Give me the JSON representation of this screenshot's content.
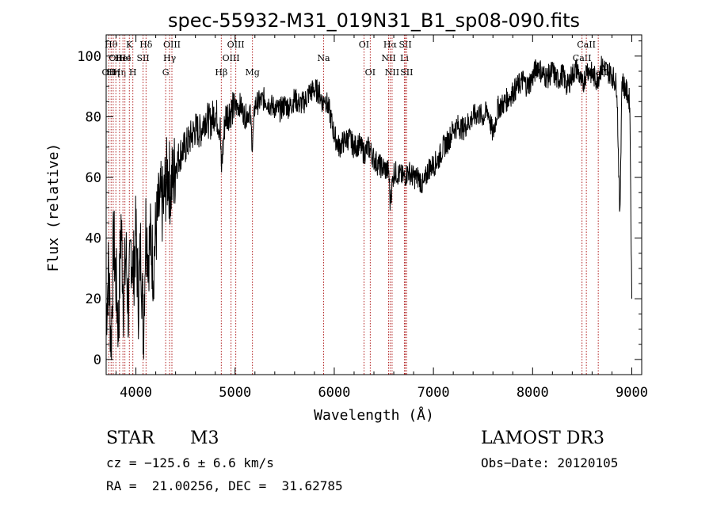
{
  "chart_data": {
    "type": "line",
    "title": "spec-55932-M31_019N31_B1_sp08-090.fits",
    "xlabel": "Wavelength (Å)",
    "ylabel": "Flux (relative)",
    "xlim": [
      3700,
      9100
    ],
    "ylim": [
      -5,
      107
    ],
    "xticks": [
      4000,
      5000,
      6000,
      7000,
      8000,
      9000
    ],
    "yticks": [
      0,
      20,
      40,
      60,
      80,
      100
    ],
    "series": [
      {
        "name": "flux",
        "x": [
          3700,
          3725,
          3750,
          3775,
          3800,
          3825,
          3850,
          3875,
          3900,
          3925,
          3950,
          3975,
          4000,
          4025,
          4050,
          4075,
          4100,
          4125,
          4150,
          4175,
          4200,
          4225,
          4250,
          4275,
          4300,
          4325,
          4350,
          4375,
          4400,
          4450,
          4500,
          4550,
          4600,
          4650,
          4700,
          4750,
          4800,
          4850,
          4861,
          4900,
          4950,
          5000,
          5050,
          5100,
          5150,
          5175,
          5200,
          5250,
          5300,
          5350,
          5400,
          5450,
          5500,
          5550,
          5600,
          5650,
          5700,
          5750,
          5800,
          5850,
          5890,
          5900,
          5950,
          6000,
          6050,
          6100,
          6150,
          6200,
          6250,
          6300,
          6350,
          6400,
          6450,
          6500,
          6550,
          6563,
          6600,
          6650,
          6700,
          6750,
          6800,
          6850,
          6900,
          6950,
          7000,
          7050,
          7100,
          7150,
          7200,
          7250,
          7300,
          7350,
          7400,
          7450,
          7500,
          7550,
          7600,
          7650,
          7700,
          7750,
          7800,
          7850,
          7900,
          7950,
          8000,
          8050,
          8100,
          8150,
          8200,
          8250,
          8300,
          8350,
          8400,
          8450,
          8500,
          8550,
          8600,
          8650,
          8700,
          8750,
          8800,
          8850,
          8880,
          8900,
          8950,
          8980,
          9000
        ],
        "y": [
          15,
          30,
          5,
          40,
          25,
          10,
          45,
          20,
          35,
          15,
          38,
          28,
          42,
          20,
          38,
          8,
          45,
          35,
          40,
          30,
          42,
          48,
          52,
          50,
          58,
          62,
          56,
          60,
          64,
          68,
          70,
          73,
          76,
          75,
          80,
          78,
          82,
          76,
          62,
          80,
          82,
          83,
          84,
          80,
          82,
          70,
          84,
          85,
          86,
          84,
          83,
          82,
          84,
          83,
          86,
          84,
          85,
          88,
          89,
          88,
          84,
          87,
          82,
          74,
          70,
          72,
          73,
          70,
          71,
          68,
          70,
          66,
          64,
          63,
          62,
          52,
          62,
          61,
          60,
          62,
          60,
          60,
          57,
          63,
          64,
          66,
          70,
          72,
          76,
          77,
          76,
          78,
          80,
          81,
          80,
          82,
          74,
          83,
          84,
          86,
          88,
          90,
          92,
          90,
          93,
          97,
          94,
          93,
          95,
          92,
          94,
          90,
          94,
          96,
          90,
          96,
          94,
          92,
          97,
          95,
          94,
          90,
          46,
          92,
          88,
          85,
          20
        ]
      }
    ],
    "lines": [
      {
        "w": 3750,
        "label": "Hθ",
        "row": 0
      },
      {
        "w": 3727,
        "label": "OII",
        "row": 2
      },
      {
        "w": 3771,
        "label": "Hη",
        "row": 2
      },
      {
        "w": 3798,
        "label": "OII",
        "row": 1
      },
      {
        "w": 3835,
        "label": "Hη",
        "row": 2
      },
      {
        "w": 3869,
        "label": "HeI",
        "row": 1
      },
      {
        "w": 3889,
        "label": "He",
        "row": 1
      },
      {
        "w": 3934,
        "label": "K",
        "row": 0
      },
      {
        "w": 3969,
        "label": "H",
        "row": 2
      },
      {
        "w": 4072,
        "label": "SII",
        "row": 1
      },
      {
        "w": 4102,
        "label": "Hδ",
        "row": 0
      },
      {
        "w": 4300,
        "label": "G",
        "row": 2
      },
      {
        "w": 4340,
        "label": "Hγ",
        "row": 1
      },
      {
        "w": 4363,
        "label": "OIII",
        "row": 0
      },
      {
        "w": 4861,
        "label": "Hβ",
        "row": 2
      },
      {
        "w": 4959,
        "label": "OIII",
        "row": 1
      },
      {
        "w": 5007,
        "label": "OIII",
        "row": 0
      },
      {
        "w": 5175,
        "label": "Mg",
        "row": 2
      },
      {
        "w": 5893,
        "label": "Na",
        "row": 1
      },
      {
        "w": 6300,
        "label": "OI",
        "row": 0
      },
      {
        "w": 6363,
        "label": "OI",
        "row": 2
      },
      {
        "w": 6548,
        "label": "NII",
        "row": 1
      },
      {
        "w": 6563,
        "label": "Hα",
        "row": 0
      },
      {
        "w": 6583,
        "label": "NII",
        "row": 2
      },
      {
        "w": 6707,
        "label": "Li",
        "row": 1
      },
      {
        "w": 6716,
        "label": "SII",
        "row": 0
      },
      {
        "w": 6730,
        "label": "SII",
        "row": 2
      },
      {
        "w": 8498,
        "label": "CaII",
        "row": 1
      },
      {
        "w": 8542,
        "label": "CaII",
        "row": 0
      },
      {
        "w": 8662,
        "label": "CaII",
        "row": 2
      }
    ]
  },
  "info": {
    "object_class": "STAR",
    "subclass": "M3",
    "survey": "LAMOST DR3",
    "cz": "cz = −125.6 ± 6.6 km/s",
    "obs_date": "Obs−Date: 20120105",
    "coords": "RA =  21.00256, DEC =  31.62785"
  }
}
